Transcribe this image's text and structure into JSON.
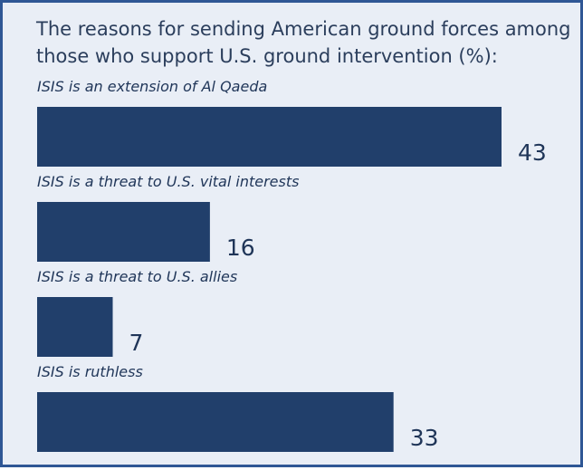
{
  "chart_data": {
    "type": "bar",
    "orientation": "horizontal",
    "title": "The reasons for sending American ground forces among those who support U.S. ground intervention (%):",
    "categories": [
      "ISIS is an extension of Al Qaeda",
      "ISIS is a threat to U.S. vital interests",
      "ISIS is a threat to U.S. allies",
      "ISIS is ruthless"
    ],
    "values": [
      43,
      16,
      7,
      33
    ],
    "xlim": [
      0,
      50
    ],
    "grid": false,
    "legend": "none",
    "bar_color": "#213f6b"
  },
  "colors": {
    "background": "#e9eef6",
    "border": "#2f5795",
    "text": "#2b3e5c"
  }
}
